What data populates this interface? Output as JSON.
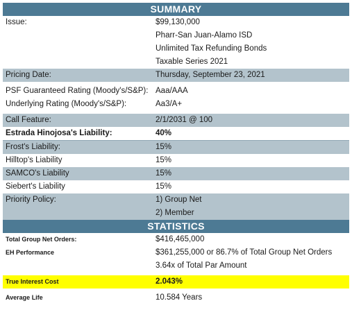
{
  "summary": {
    "title": "SUMMARY",
    "issue_label": "Issue:",
    "issue_lines": [
      "$99,130,000",
      "Pharr-San Juan-Alamo ISD",
      "Unlimited Tax Refunding Bonds",
      "Taxable Series 2021"
    ],
    "pricing_date_label": "Pricing Date:",
    "pricing_date": "Thursday, September 23, 2021",
    "psf_rating_label": "PSF Guaranteed Rating (Moody's/S&P):",
    "psf_rating": "Aaa/AAA",
    "underlying_rating_label": "Underlying Rating (Moody's/S&P):",
    "underlying_rating": "Aa3/A+",
    "call_feature_label": "Call Feature:",
    "call_feature": "2/1/2031 @ 100",
    "estrada_label": "Estrada Hinojosa's Liability:",
    "estrada_value": "40%",
    "frost_label": "Frost's Liability:",
    "frost_value": "15%",
    "hilltop_label": "Hilltop's Liability",
    "hilltop_value": "15%",
    "samco_label": "SAMCO's Liability",
    "samco_value": "15%",
    "siebert_label": "Siebert's Liability",
    "siebert_value": "15%",
    "priority_label": "Priority Policy:",
    "priority_lines": [
      "1) Group Net",
      "2) Member"
    ]
  },
  "statistics": {
    "title": "STATISTICS",
    "net_orders_label": "Total Group Net Orders:",
    "net_orders_value": "$416,465,000",
    "eh_perf_label": "EH Performance",
    "eh_perf_lines": [
      "$361,255,000 or 86.7% of Total Group Net Orders",
      "3.64x of Total Par Amount"
    ],
    "tic_label": "True Interest Cost",
    "tic_value": "2.043%",
    "avg_life_label": "Average Life",
    "avg_life_value": "10.584 Years"
  },
  "colors": {
    "header": "#4d7a94",
    "shade": "#b3c3cc",
    "highlight": "#ffff00"
  }
}
